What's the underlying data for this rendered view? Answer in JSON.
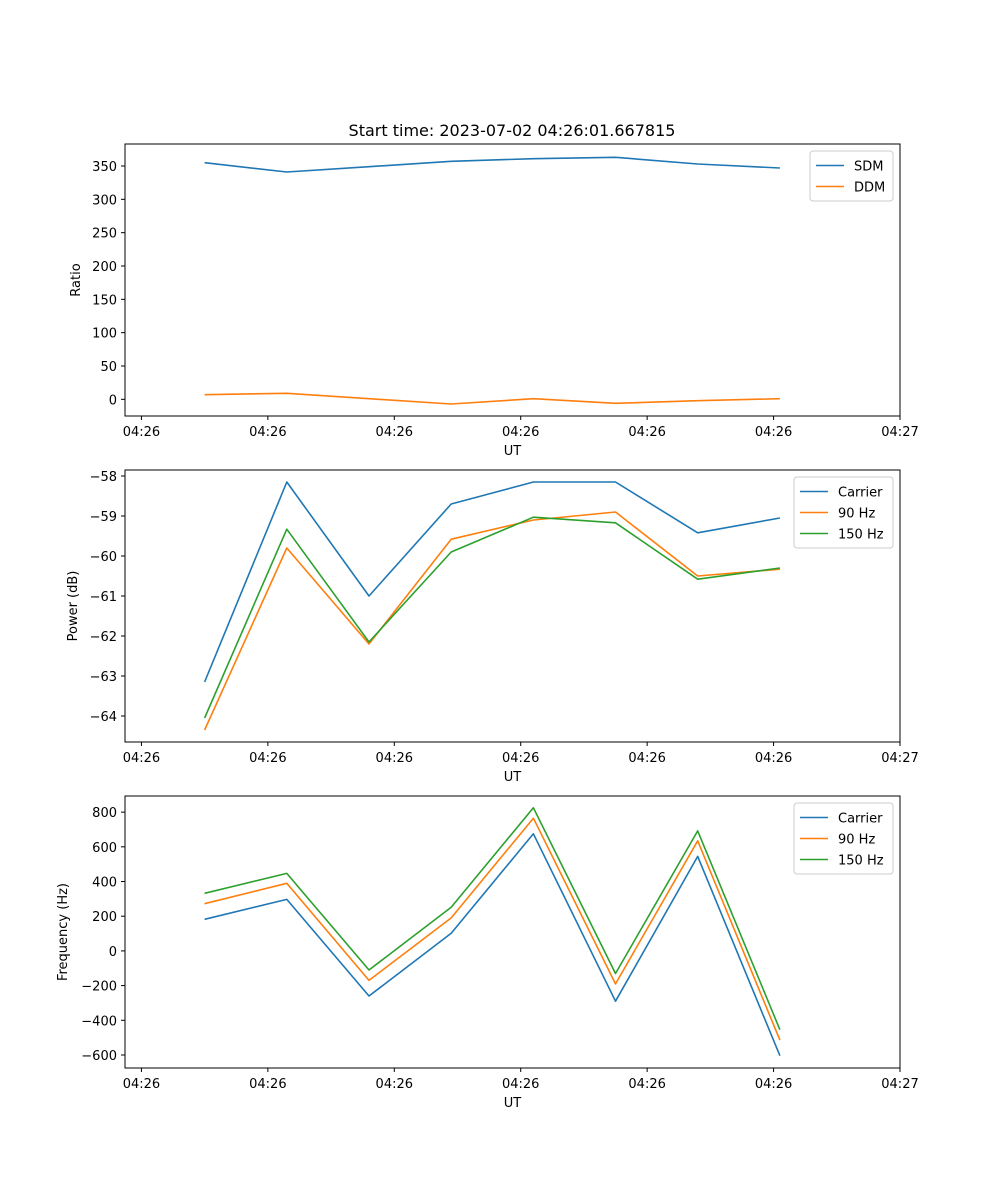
{
  "chart_data": [
    {
      "type": "line",
      "title": "Start time: 2023-07-02 04:26:01.667815",
      "xlabel": "UT",
      "ylabel": "Ratio",
      "x_tick_labels": [
        "04:26",
        "04:26",
        "04:26",
        "04:26",
        "04:26",
        "04:26",
        "04:27"
      ],
      "x_ticks": [
        0,
        1,
        2,
        3,
        4,
        5,
        6
      ],
      "xlim": [
        -0.13,
        6.0
      ],
      "x": [
        0.5,
        1.15,
        1.8,
        2.45,
        3.1,
        3.75,
        4.4,
        5.05
      ],
      "y_ticks": [
        0,
        50,
        100,
        150,
        200,
        250,
        300,
        350
      ],
      "y_tick_labels": [
        "0",
        "50",
        "100",
        "150",
        "200",
        "250",
        "300",
        "350"
      ],
      "ylim": [
        -25,
        383
      ],
      "legend_position": "top-right",
      "series": [
        {
          "name": "SDM",
          "color": "#1f77b4",
          "values": [
            355,
            341,
            349,
            357,
            361,
            363,
            353,
            347
          ]
        },
        {
          "name": "DDM",
          "color": "#ff7f0e",
          "values": [
            7,
            9,
            1,
            -7,
            1,
            -6,
            -2,
            1
          ]
        }
      ]
    },
    {
      "type": "line",
      "title": "",
      "xlabel": "UT",
      "ylabel": "Power (dB)",
      "x_tick_labels": [
        "04:26",
        "04:26",
        "04:26",
        "04:26",
        "04:26",
        "04:26",
        "04:27"
      ],
      "x_ticks": [
        0,
        1,
        2,
        3,
        4,
        5,
        6
      ],
      "xlim": [
        -0.13,
        6.0
      ],
      "x": [
        0.5,
        1.15,
        1.8,
        2.45,
        3.1,
        3.75,
        4.4,
        5.05
      ],
      "y_ticks": [
        -64,
        -63,
        -62,
        -61,
        -60,
        -59,
        -58
      ],
      "y_tick_labels": [
        "−64",
        "−63",
        "−62",
        "−61",
        "−60",
        "−59",
        "−58"
      ],
      "ylim": [
        -64.65,
        -57.85
      ],
      "legend_position": "top-right",
      "series": [
        {
          "name": "Carrier",
          "color": "#1f77b4",
          "values": [
            -63.15,
            -58.15,
            -61.0,
            -58.7,
            -58.15,
            -58.15,
            -59.42,
            -59.05
          ]
        },
        {
          "name": "90 Hz",
          "color": "#ff7f0e",
          "values": [
            -64.35,
            -59.8,
            -62.2,
            -59.58,
            -59.1,
            -58.9,
            -60.5,
            -60.33
          ]
        },
        {
          "name": "150 Hz",
          "color": "#2ca02c",
          "values": [
            -64.05,
            -59.33,
            -62.15,
            -59.9,
            -59.03,
            -59.17,
            -60.58,
            -60.3
          ]
        }
      ]
    },
    {
      "type": "line",
      "title": "",
      "xlabel": "UT",
      "ylabel": "Frequency (Hz)",
      "x_tick_labels": [
        "04:26",
        "04:26",
        "04:26",
        "04:26",
        "04:26",
        "04:26",
        "04:27"
      ],
      "x_ticks": [
        0,
        1,
        2,
        3,
        4,
        5,
        6
      ],
      "xlim": [
        -0.13,
        6.0
      ],
      "x": [
        0.5,
        1.15,
        1.8,
        2.45,
        3.1,
        3.75,
        4.4,
        5.05
      ],
      "y_ticks": [
        -600,
        -400,
        -200,
        0,
        200,
        400,
        600,
        800
      ],
      "y_tick_labels": [
        "−600",
        "−400",
        "−200",
        "0",
        "200",
        "400",
        "600",
        "800"
      ],
      "ylim": [
        -675,
        893
      ],
      "legend_position": "top-right",
      "series": [
        {
          "name": "Carrier",
          "color": "#1f77b4",
          "values": [
            182,
            297,
            -260,
            102,
            675,
            -290,
            545,
            -604
          ]
        },
        {
          "name": "90 Hz",
          "color": "#ff7f0e",
          "values": [
            272,
            390,
            -170,
            190,
            765,
            -190,
            635,
            -514
          ]
        },
        {
          "name": "150 Hz",
          "color": "#2ca02c",
          "values": [
            332,
            447,
            -110,
            252,
            825,
            -130,
            692,
            -454
          ]
        }
      ]
    }
  ]
}
